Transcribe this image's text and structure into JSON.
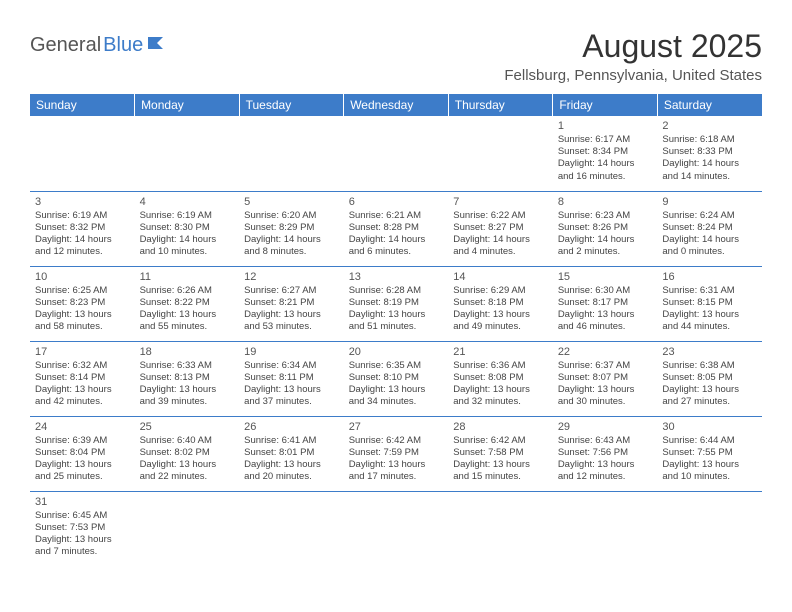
{
  "logo": {
    "general": "General",
    "blue": "Blue"
  },
  "title": "August 2025",
  "location": "Fellsburg, Pennsylvania, United States",
  "header_bg": "#3d7cc9",
  "header_text_color": "#ffffff",
  "border_color": "#3d7cc9",
  "weekdays": [
    "Sunday",
    "Monday",
    "Tuesday",
    "Wednesday",
    "Thursday",
    "Friday",
    "Saturday"
  ],
  "rows": [
    [
      null,
      null,
      null,
      null,
      null,
      {
        "n": "1",
        "sr": "Sunrise: 6:17 AM",
        "ss": "Sunset: 8:34 PM",
        "dl1": "Daylight: 14 hours",
        "dl2": "and 16 minutes."
      },
      {
        "n": "2",
        "sr": "Sunrise: 6:18 AM",
        "ss": "Sunset: 8:33 PM",
        "dl1": "Daylight: 14 hours",
        "dl2": "and 14 minutes."
      }
    ],
    [
      {
        "n": "3",
        "sr": "Sunrise: 6:19 AM",
        "ss": "Sunset: 8:32 PM",
        "dl1": "Daylight: 14 hours",
        "dl2": "and 12 minutes."
      },
      {
        "n": "4",
        "sr": "Sunrise: 6:19 AM",
        "ss": "Sunset: 8:30 PM",
        "dl1": "Daylight: 14 hours",
        "dl2": "and 10 minutes."
      },
      {
        "n": "5",
        "sr": "Sunrise: 6:20 AM",
        "ss": "Sunset: 8:29 PM",
        "dl1": "Daylight: 14 hours",
        "dl2": "and 8 minutes."
      },
      {
        "n": "6",
        "sr": "Sunrise: 6:21 AM",
        "ss": "Sunset: 8:28 PM",
        "dl1": "Daylight: 14 hours",
        "dl2": "and 6 minutes."
      },
      {
        "n": "7",
        "sr": "Sunrise: 6:22 AM",
        "ss": "Sunset: 8:27 PM",
        "dl1": "Daylight: 14 hours",
        "dl2": "and 4 minutes."
      },
      {
        "n": "8",
        "sr": "Sunrise: 6:23 AM",
        "ss": "Sunset: 8:26 PM",
        "dl1": "Daylight: 14 hours",
        "dl2": "and 2 minutes."
      },
      {
        "n": "9",
        "sr": "Sunrise: 6:24 AM",
        "ss": "Sunset: 8:24 PM",
        "dl1": "Daylight: 14 hours",
        "dl2": "and 0 minutes."
      }
    ],
    [
      {
        "n": "10",
        "sr": "Sunrise: 6:25 AM",
        "ss": "Sunset: 8:23 PM",
        "dl1": "Daylight: 13 hours",
        "dl2": "and 58 minutes."
      },
      {
        "n": "11",
        "sr": "Sunrise: 6:26 AM",
        "ss": "Sunset: 8:22 PM",
        "dl1": "Daylight: 13 hours",
        "dl2": "and 55 minutes."
      },
      {
        "n": "12",
        "sr": "Sunrise: 6:27 AM",
        "ss": "Sunset: 8:21 PM",
        "dl1": "Daylight: 13 hours",
        "dl2": "and 53 minutes."
      },
      {
        "n": "13",
        "sr": "Sunrise: 6:28 AM",
        "ss": "Sunset: 8:19 PM",
        "dl1": "Daylight: 13 hours",
        "dl2": "and 51 minutes."
      },
      {
        "n": "14",
        "sr": "Sunrise: 6:29 AM",
        "ss": "Sunset: 8:18 PM",
        "dl1": "Daylight: 13 hours",
        "dl2": "and 49 minutes."
      },
      {
        "n": "15",
        "sr": "Sunrise: 6:30 AM",
        "ss": "Sunset: 8:17 PM",
        "dl1": "Daylight: 13 hours",
        "dl2": "and 46 minutes."
      },
      {
        "n": "16",
        "sr": "Sunrise: 6:31 AM",
        "ss": "Sunset: 8:15 PM",
        "dl1": "Daylight: 13 hours",
        "dl2": "and 44 minutes."
      }
    ],
    [
      {
        "n": "17",
        "sr": "Sunrise: 6:32 AM",
        "ss": "Sunset: 8:14 PM",
        "dl1": "Daylight: 13 hours",
        "dl2": "and 42 minutes."
      },
      {
        "n": "18",
        "sr": "Sunrise: 6:33 AM",
        "ss": "Sunset: 8:13 PM",
        "dl1": "Daylight: 13 hours",
        "dl2": "and 39 minutes."
      },
      {
        "n": "19",
        "sr": "Sunrise: 6:34 AM",
        "ss": "Sunset: 8:11 PM",
        "dl1": "Daylight: 13 hours",
        "dl2": "and 37 minutes."
      },
      {
        "n": "20",
        "sr": "Sunrise: 6:35 AM",
        "ss": "Sunset: 8:10 PM",
        "dl1": "Daylight: 13 hours",
        "dl2": "and 34 minutes."
      },
      {
        "n": "21",
        "sr": "Sunrise: 6:36 AM",
        "ss": "Sunset: 8:08 PM",
        "dl1": "Daylight: 13 hours",
        "dl2": "and 32 minutes."
      },
      {
        "n": "22",
        "sr": "Sunrise: 6:37 AM",
        "ss": "Sunset: 8:07 PM",
        "dl1": "Daylight: 13 hours",
        "dl2": "and 30 minutes."
      },
      {
        "n": "23",
        "sr": "Sunrise: 6:38 AM",
        "ss": "Sunset: 8:05 PM",
        "dl1": "Daylight: 13 hours",
        "dl2": "and 27 minutes."
      }
    ],
    [
      {
        "n": "24",
        "sr": "Sunrise: 6:39 AM",
        "ss": "Sunset: 8:04 PM",
        "dl1": "Daylight: 13 hours",
        "dl2": "and 25 minutes."
      },
      {
        "n": "25",
        "sr": "Sunrise: 6:40 AM",
        "ss": "Sunset: 8:02 PM",
        "dl1": "Daylight: 13 hours",
        "dl2": "and 22 minutes."
      },
      {
        "n": "26",
        "sr": "Sunrise: 6:41 AM",
        "ss": "Sunset: 8:01 PM",
        "dl1": "Daylight: 13 hours",
        "dl2": "and 20 minutes."
      },
      {
        "n": "27",
        "sr": "Sunrise: 6:42 AM",
        "ss": "Sunset: 7:59 PM",
        "dl1": "Daylight: 13 hours",
        "dl2": "and 17 minutes."
      },
      {
        "n": "28",
        "sr": "Sunrise: 6:42 AM",
        "ss": "Sunset: 7:58 PM",
        "dl1": "Daylight: 13 hours",
        "dl2": "and 15 minutes."
      },
      {
        "n": "29",
        "sr": "Sunrise: 6:43 AM",
        "ss": "Sunset: 7:56 PM",
        "dl1": "Daylight: 13 hours",
        "dl2": "and 12 minutes."
      },
      {
        "n": "30",
        "sr": "Sunrise: 6:44 AM",
        "ss": "Sunset: 7:55 PM",
        "dl1": "Daylight: 13 hours",
        "dl2": "and 10 minutes."
      }
    ],
    [
      {
        "n": "31",
        "sr": "Sunrise: 6:45 AM",
        "ss": "Sunset: 7:53 PM",
        "dl1": "Daylight: 13 hours",
        "dl2": "and 7 minutes."
      },
      null,
      null,
      null,
      null,
      null,
      null
    ]
  ]
}
